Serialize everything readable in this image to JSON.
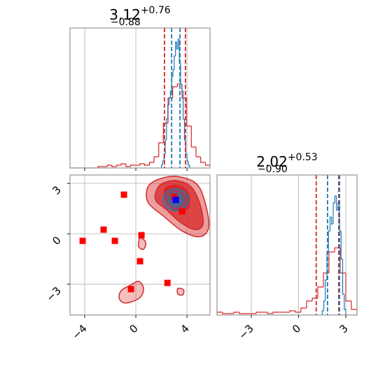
{
  "chart_data": [
    {
      "type": "histogram",
      "title": "3.12",
      "title_sup": "+0.76",
      "title_sub": "−0.88",
      "xlim": [
        -5.15,
        5.8
      ],
      "xticks": [
        {
          "value": -4,
          "label": "−4"
        },
        0,
        4
      ],
      "ylim": [
        0,
        1
      ],
      "grid": true,
      "series": [
        {
          "color": "#d62728",
          "bins": [
            -5.15,
            -4.79,
            -4.42,
            -4.06,
            -3.69,
            -3.33,
            -2.96,
            -2.6,
            -2.23,
            -1.87,
            -1.5,
            -1.14,
            -0.77,
            -0.41,
            -0.04,
            0.33,
            0.69,
            1.06,
            1.42,
            1.79,
            2.15,
            2.52,
            2.88,
            3.25,
            3.61,
            3.98,
            4.34,
            4.71,
            5.07,
            5.44,
            5.8
          ],
          "values": [
            0,
            0,
            0,
            0,
            0,
            0,
            0.01,
            0.01,
            0.02,
            0.01,
            0.02,
            0.03,
            0.01,
            0.02,
            0.02,
            0.03,
            0.02,
            0.04,
            0.08,
            0.18,
            0.32,
            0.5,
            0.58,
            0.6,
            0.5,
            0.3,
            0.15,
            0.08,
            0.04,
            0.02
          ]
        },
        {
          "color": "#1f77b4",
          "bins": [
            2.0,
            2.1,
            2.2,
            2.3,
            2.4,
            2.5,
            2.6,
            2.7,
            2.8,
            2.9,
            3.0,
            3.1,
            3.2,
            3.3,
            3.4,
            3.5,
            3.6,
            3.7,
            3.8,
            3.9,
            4.0,
            4.1,
            4.2
          ],
          "values": [
            0.02,
            0.05,
            0.1,
            0.2,
            0.35,
            0.45,
            0.5,
            0.55,
            0.65,
            0.7,
            0.8,
            0.9,
            0.85,
            0.92,
            0.75,
            0.6,
            0.55,
            0.35,
            0.2,
            0.1,
            0.05,
            0.02
          ]
        }
      ],
      "vlines": [
        {
          "color": "#d62728",
          "values": [
            2.24,
            3.88
          ]
        },
        {
          "color": "#1f77b4",
          "values": [
            2.8,
            3.45
          ]
        }
      ]
    },
    {
      "type": "scatter",
      "xlim": [
        -5.15,
        5.8
      ],
      "ylim": [
        -4.83,
        3.5
      ],
      "xticks": [
        {
          "value": -4,
          "label": "−4"
        },
        0,
        4
      ],
      "yticks": [
        {
          "value": -3,
          "label": "−3"
        },
        0,
        3
      ],
      "grid": true,
      "contours": [
        {
          "color": "#d62728",
          "fill_opacity": 0.45,
          "x": [
            1.53,
            3.07,
            4.71,
            5.43,
            5.7,
            4.99,
            3.62,
            2.25,
            0.99,
            0.88
          ],
          "y": [
            3.17,
            3.42,
            3.0,
            1.83,
            0.38,
            -0.17,
            0.17,
            1.0,
            1.83,
            2.67
          ]
        },
        {
          "color": "#d62728",
          "fill_opacity": 0.3,
          "x": [
            -1.15,
            -0.49,
            0.22,
            0.6,
            0.33,
            -0.49,
            -1.04,
            -1.31
          ],
          "y": [
            -3.38,
            -3.08,
            -2.83,
            -3.25,
            -3.79,
            -4.08,
            -4.08,
            -3.79
          ]
        },
        {
          "color": "#d62728",
          "fill_opacity": 0.3,
          "x": [
            0.33,
            0.77,
            0.6,
            0.22
          ],
          "y": [
            -0.25,
            -0.5,
            -0.92,
            -0.75
          ]
        },
        {
          "color": "#d62728",
          "fill_opacity": 0.3,
          "x": [
            3.29,
            3.73,
            3.67,
            3.29
          ],
          "y": [
            -3.25,
            -3.33,
            -3.63,
            -3.58
          ]
        },
        {
          "color": "#d62728",
          "fill_opacity": 0.75,
          "x": [
            1.86,
            3.07,
            4.27,
            4.99,
            5.26,
            4.6,
            3.51,
            2.41,
            1.53
          ],
          "y": [
            2.88,
            3.17,
            2.83,
            1.83,
            0.58,
            0.25,
            0.67,
            1.42,
            2.04
          ]
        },
        {
          "color": "#d62728",
          "fill_opacity": 0.95,
          "x": [
            2.25,
            3.34,
            4.06,
            4.17,
            3.51,
            2.52
          ],
          "y": [
            2.67,
            2.88,
            2.46,
            1.63,
            1.33,
            1.75
          ]
        },
        {
          "color": "#1f77b4",
          "fill_opacity": 0.35,
          "x": [
            4.12,
            3.83,
            3.12,
            2.41,
            2.12,
            2.41,
            3.12,
            3.83
          ],
          "y": [
            2.02,
            2.48,
            2.67,
            2.48,
            2.02,
            1.56,
            1.37,
            1.56
          ]
        },
        {
          "color": "#1f77b4",
          "fill_opacity": 0.5,
          "x": [
            3.67,
            3.51,
            3.12,
            2.73,
            2.57,
            2.73,
            3.12,
            3.51
          ],
          "y": [
            2.02,
            2.3,
            2.42,
            2.3,
            2.02,
            1.74,
            1.62,
            1.74
          ]
        }
      ],
      "series": [
        {
          "color": "#ff0000",
          "x": [
            -0.93,
            -2.52,
            -1.64,
            -4.16,
            0.44,
            0.33,
            -0.38,
            2.47,
            3.0,
            3.62
          ],
          "y": [
            2.33,
            0.25,
            -0.42,
            -0.42,
            -0.08,
            -1.63,
            -3.29,
            -2.92,
            2.2,
            1.33
          ]
        },
        {
          "color": "#0000ff",
          "x": [
            3.12
          ],
          "y": [
            2.02
          ]
        }
      ]
    },
    {
      "type": "histogram",
      "title": "2.02",
      "title_sup": "+0.53",
      "title_sub": "−0.90",
      "xlim": [
        -5.18,
        3.71
      ],
      "xticks": [
        {
          "value": -3,
          "label": "−3"
        },
        0,
        3
      ],
      "ylim": [
        0,
        1
      ],
      "grid": true,
      "series": [
        {
          "color": "#d62728",
          "bins": [
            -5.18,
            -4.82,
            -4.47,
            -4.11,
            -3.76,
            -3.4,
            -3.05,
            -2.69,
            -2.34,
            -1.98,
            -1.62,
            -1.27,
            -0.91,
            -0.56,
            -0.2,
            0.15,
            0.51,
            0.87,
            1.22,
            1.58,
            1.93,
            2.29,
            2.64,
            3.0,
            3.35,
            3.71
          ],
          "values": [
            0.02,
            0.01,
            0.01,
            0.02,
            0.01,
            0.01,
            0.01,
            0.02,
            0.02,
            0.01,
            0.02,
            0.02,
            0.02,
            0.03,
            0.02,
            0.05,
            0.1,
            0.12,
            0.2,
            0.3,
            0.45,
            0.48,
            0.3,
            0.1,
            0.04
          ]
        },
        {
          "color": "#1f77b4",
          "bins": [
            1.5,
            1.6,
            1.7,
            1.8,
            1.9,
            2.0,
            2.1,
            2.2,
            2.3,
            2.4,
            2.5,
            2.6,
            2.7,
            2.8,
            2.9,
            3.0
          ],
          "values": [
            0.03,
            0.1,
            0.25,
            0.45,
            0.6,
            0.7,
            0.65,
            0.8,
            0.85,
            0.75,
            0.8,
            0.6,
            0.4,
            0.15,
            0.04
          ]
        }
      ],
      "vlines": [
        {
          "color": "#d62728",
          "values": [
            1.12,
            2.55
          ]
        },
        {
          "color": "#1f77b4",
          "values": [
            1.84,
            2.6
          ]
        }
      ]
    }
  ]
}
